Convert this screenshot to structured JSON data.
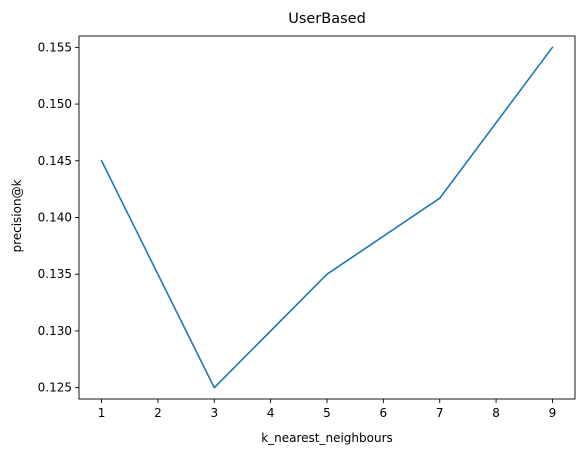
{
  "chart_data": {
    "type": "line",
    "title": "UserBased",
    "xlabel": "k_nearest_neighbours",
    "ylabel": "precision@k",
    "x": [
      1,
      3,
      5,
      7,
      9
    ],
    "series": [
      {
        "values": [
          0.145,
          0.125,
          0.135,
          0.1417,
          0.155
        ],
        "color": "#1f77b4"
      }
    ],
    "xticks": [
      1,
      2,
      3,
      4,
      5,
      6,
      7,
      8,
      9
    ],
    "xtick_labels": [
      "1",
      "2",
      "3",
      "4",
      "5",
      "6",
      "7",
      "8",
      "9"
    ],
    "yticks": [
      0.125,
      0.13,
      0.135,
      0.14,
      0.145,
      0.15,
      0.155
    ],
    "ytick_labels": [
      "0.125",
      "0.130",
      "0.135",
      "0.140",
      "0.145",
      "0.150",
      "0.155"
    ],
    "xlim": [
      0.6,
      9.4
    ],
    "ylim": [
      0.124,
      0.156
    ],
    "grid": false,
    "legend": false
  }
}
